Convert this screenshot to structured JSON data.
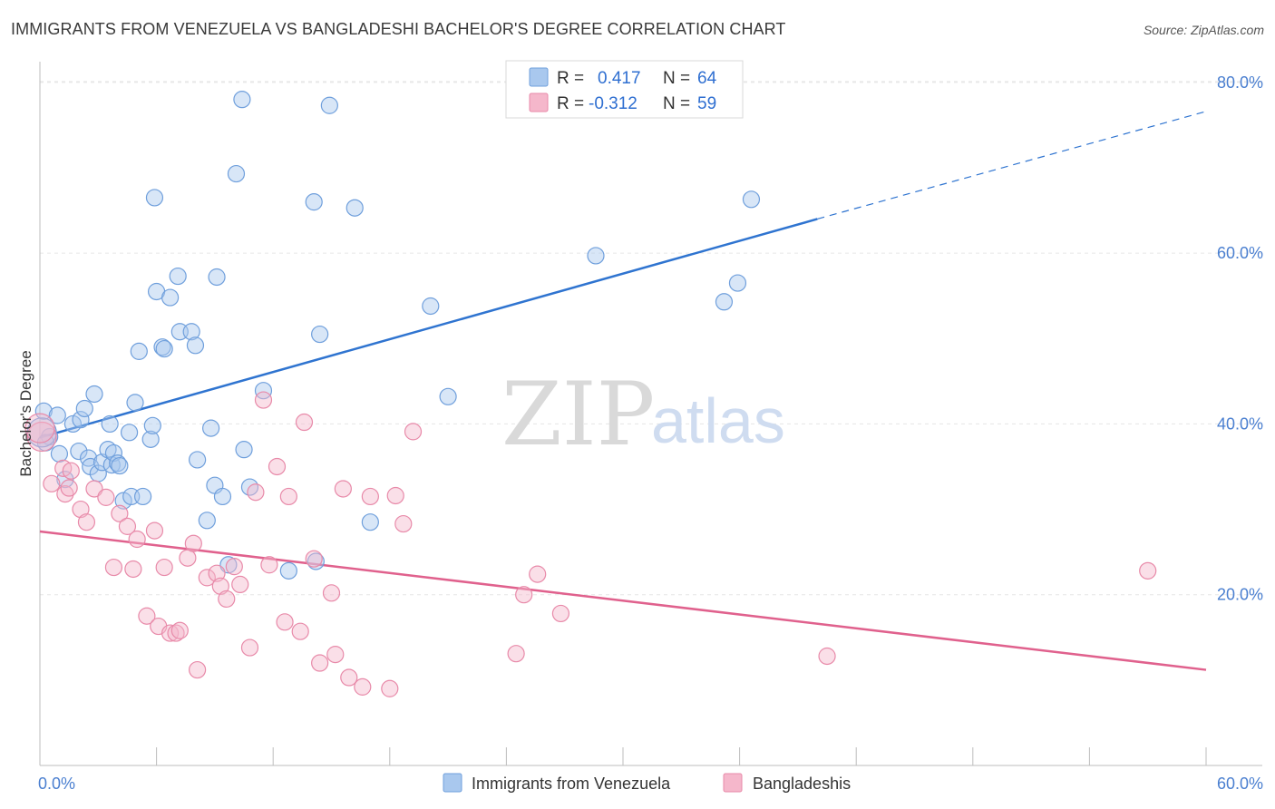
{
  "title": "IMMIGRANTS FROM VENEZUELA VS BANGLADESHI BACHELOR'S DEGREE CORRELATION CHART",
  "source": "Source: ZipAtlas.com",
  "watermark": {
    "zip": "ZIP",
    "atlas": "atlas"
  },
  "chart_data": {
    "type": "scatter",
    "ylabel": "Bachelor's Degree",
    "xlim": [
      0,
      60
    ],
    "ylim": [
      0,
      82
    ],
    "x_ticks": [
      {
        "value": 0,
        "label": "0.0%"
      },
      {
        "value": 60,
        "label": "60.0%"
      }
    ],
    "x_minor_ticks": [
      0,
      6,
      12,
      18,
      24,
      30,
      36,
      42,
      48,
      54,
      60
    ],
    "y_ticks": [
      {
        "value": 20,
        "label": "20.0%"
      },
      {
        "value": 40,
        "label": "40.0%"
      },
      {
        "value": 60,
        "label": "60.0%"
      },
      {
        "value": 80,
        "label": "80.0%"
      }
    ],
    "grid": true,
    "legend": {
      "placement": "top-center",
      "rows": [
        {
          "r_label": "R =",
          "r_value": "0.417",
          "n_label": "N =",
          "n_value": "64"
        },
        {
          "r_label": "R =",
          "r_value": "-0.312",
          "n_label": "N =",
          "n_value": "59"
        }
      ]
    },
    "series": [
      {
        "name": "Immigrants from Venezuela",
        "color": "#a9c8ee",
        "stroke": "#6f9fdc",
        "line_color": "#2f74d0",
        "trend": {
          "x0": 0,
          "y0": 38.4,
          "x1": 40,
          "y1": 64.0,
          "dash_to_x": 60,
          "dash_to_y": 76.6
        },
        "points": [
          [
            0.2,
            41.5
          ],
          [
            0.5,
            38.5
          ],
          [
            0.3,
            37.8
          ],
          [
            0.9,
            41.0
          ],
          [
            1.0,
            36.5
          ],
          [
            1.3,
            33.5
          ],
          [
            1.7,
            40.0
          ],
          [
            2.1,
            40.5
          ],
          [
            2.0,
            36.8
          ],
          [
            2.3,
            41.8
          ],
          [
            2.5,
            36.0
          ],
          [
            2.6,
            35.0
          ],
          [
            2.8,
            43.5
          ],
          [
            3.0,
            34.2
          ],
          [
            3.2,
            35.5
          ],
          [
            3.5,
            37.0
          ],
          [
            3.6,
            40.0
          ],
          [
            3.7,
            35.2
          ],
          [
            3.8,
            36.6
          ],
          [
            4.0,
            35.4
          ],
          [
            4.1,
            35.1
          ],
          [
            4.3,
            31.0
          ],
          [
            4.6,
            39.0
          ],
          [
            4.7,
            31.5
          ],
          [
            4.9,
            42.5
          ],
          [
            5.1,
            48.5
          ],
          [
            5.3,
            31.5
          ],
          [
            5.7,
            38.2
          ],
          [
            5.8,
            39.8
          ],
          [
            5.9,
            66.5
          ],
          [
            6.0,
            55.5
          ],
          [
            6.3,
            49.0
          ],
          [
            6.4,
            48.8
          ],
          [
            6.7,
            54.8
          ],
          [
            7.1,
            57.3
          ],
          [
            7.2,
            50.8
          ],
          [
            7.8,
            50.8
          ],
          [
            8.0,
            49.2
          ],
          [
            8.1,
            35.8
          ],
          [
            8.6,
            28.7
          ],
          [
            8.8,
            39.5
          ],
          [
            9.0,
            32.8
          ],
          [
            9.1,
            57.2
          ],
          [
            9.4,
            31.5
          ],
          [
            9.7,
            23.5
          ],
          [
            10.1,
            69.3
          ],
          [
            10.4,
            78.0
          ],
          [
            10.5,
            37.0
          ],
          [
            10.8,
            32.6
          ],
          [
            11.5,
            43.9
          ],
          [
            12.8,
            22.8
          ],
          [
            14.1,
            66.0
          ],
          [
            14.2,
            23.9
          ],
          [
            14.4,
            50.5
          ],
          [
            14.9,
            77.3
          ],
          [
            16.2,
            65.3
          ],
          [
            17.0,
            28.5
          ],
          [
            20.1,
            53.8
          ],
          [
            21.0,
            43.2
          ],
          [
            28.6,
            59.7
          ],
          [
            35.2,
            54.3
          ],
          [
            35.9,
            56.5
          ],
          [
            36.6,
            66.3
          ],
          [
            0.1,
            39.0
          ]
        ]
      },
      {
        "name": "Bangladeshis",
        "color": "#f5b7cb",
        "stroke": "#e88aa9",
        "line_color": "#e0618d",
        "trend": {
          "x0": 0,
          "y0": 27.4,
          "x1": 60,
          "y1": 11.2
        },
        "points": [
          [
            0.1,
            38.5
          ],
          [
            0.6,
            33.0
          ],
          [
            1.2,
            34.8
          ],
          [
            1.3,
            31.8
          ],
          [
            1.6,
            34.5
          ],
          [
            1.5,
            32.5
          ],
          [
            2.1,
            30.0
          ],
          [
            2.4,
            28.5
          ],
          [
            2.8,
            32.4
          ],
          [
            3.4,
            31.4
          ],
          [
            3.8,
            23.2
          ],
          [
            4.1,
            29.5
          ],
          [
            4.5,
            28.0
          ],
          [
            4.8,
            23.0
          ],
          [
            5.0,
            26.5
          ],
          [
            5.5,
            17.5
          ],
          [
            5.9,
            27.5
          ],
          [
            6.1,
            16.3
          ],
          [
            6.4,
            23.2
          ],
          [
            6.7,
            15.5
          ],
          [
            7.0,
            15.5
          ],
          [
            7.2,
            15.8
          ],
          [
            7.6,
            24.3
          ],
          [
            7.9,
            26.0
          ],
          [
            8.1,
            11.2
          ],
          [
            8.6,
            22.0
          ],
          [
            9.1,
            22.5
          ],
          [
            9.3,
            21.0
          ],
          [
            9.6,
            19.5
          ],
          [
            10.0,
            23.3
          ],
          [
            10.3,
            21.2
          ],
          [
            10.8,
            13.8
          ],
          [
            11.1,
            32.0
          ],
          [
            11.5,
            42.8
          ],
          [
            11.8,
            23.5
          ],
          [
            12.2,
            35.0
          ],
          [
            12.6,
            16.8
          ],
          [
            12.8,
            31.5
          ],
          [
            13.4,
            15.7
          ],
          [
            13.6,
            40.2
          ],
          [
            14.1,
            24.2
          ],
          [
            14.4,
            12.0
          ],
          [
            15.0,
            20.2
          ],
          [
            15.2,
            13.0
          ],
          [
            15.6,
            32.4
          ],
          [
            15.9,
            10.3
          ],
          [
            16.6,
            9.2
          ],
          [
            17.0,
            31.5
          ],
          [
            18.0,
            9.0
          ],
          [
            18.3,
            31.6
          ],
          [
            18.7,
            28.3
          ],
          [
            19.2,
            39.1
          ],
          [
            24.5,
            13.1
          ],
          [
            24.9,
            20.0
          ],
          [
            25.6,
            22.4
          ],
          [
            26.8,
            17.8
          ],
          [
            40.5,
            12.8
          ],
          [
            57.0,
            22.8
          ],
          [
            0.0,
            39.5
          ]
        ]
      }
    ]
  }
}
